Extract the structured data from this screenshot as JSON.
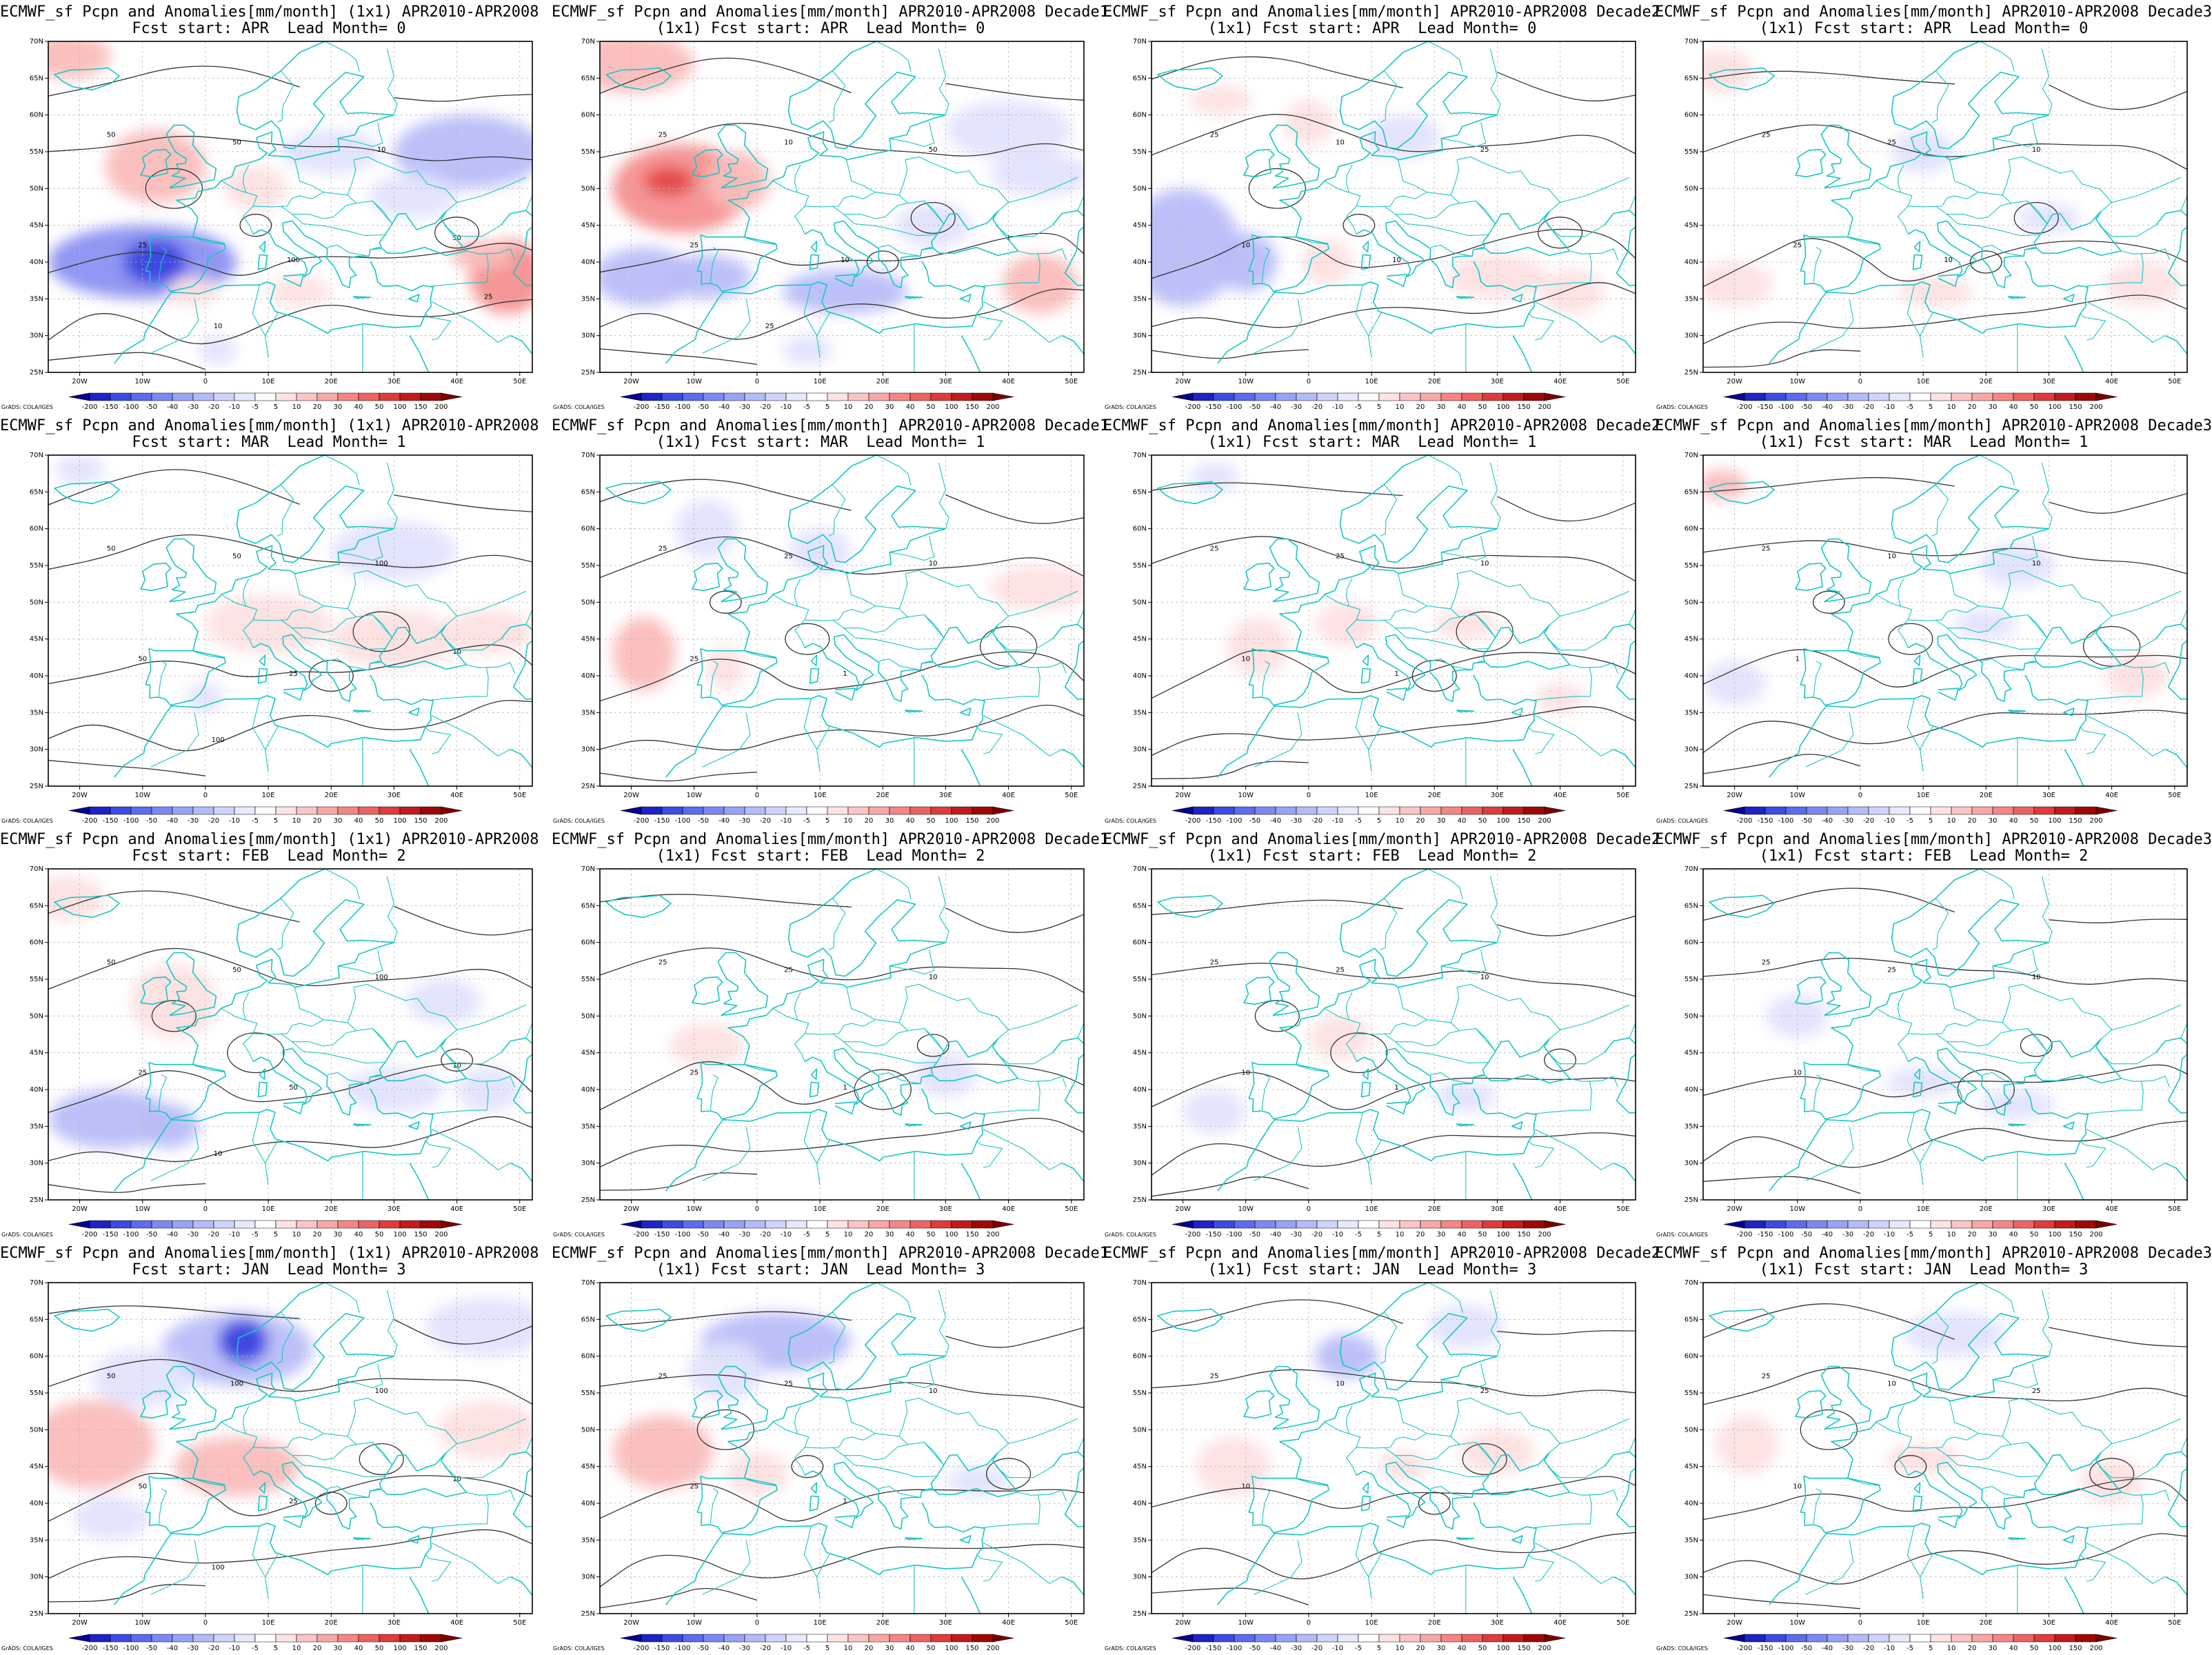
{
  "figure": {
    "colorbar_ticks": [
      "-200",
      "-150",
      "-100",
      "-50",
      "-40",
      "-30",
      "-20",
      "-10",
      "-5",
      "5",
      "10",
      "20",
      "30",
      "40",
      "50",
      "100",
      "150",
      "200"
    ],
    "colorbar_colors": [
      "#06038f",
      "#1d23c5",
      "#3c4be6",
      "#5c6bf0",
      "#7b88f5",
      "#97a3f8",
      "#b3bcfa",
      "#cfd4fc",
      "#e7e9fe",
      "#ffffff",
      "#ffe3e3",
      "#fdc4c4",
      "#fba6a6",
      "#f78585",
      "#f06262",
      "#e03a3a",
      "#c41a1a",
      "#a00808",
      "#7a0000"
    ],
    "credit": "GrADS: COLA/IGES",
    "lon_labels": [
      "20W",
      "10W",
      "0",
      "10E",
      "20E",
      "30E",
      "40E",
      "50E"
    ],
    "lat_labels": [
      "70N",
      "65N",
      "60N",
      "55N",
      "50N",
      "45N",
      "40N",
      "35N",
      "30N",
      "25N"
    ],
    "contour_levels_mm_month": [
      "1",
      "10",
      "25",
      "50",
      "100"
    ],
    "positive_anomaly_color": "#f08a8a",
    "negative_anomaly_color": "#7d83ee",
    "coast_color": "#18c6c6"
  },
  "rows": [
    {
      "forecast_start": "APR",
      "lead_month": "0",
      "panels": [
        {
          "title1": "ECMWF_sf Pcpn and Anomalies[mm/month] (1x1) APR2010-APR2008",
          "title2": "Fcst start: APR  Lead Month= 0",
          "contour_labels": [
            "50",
            "50",
            "10",
            "25",
            "100",
            "50",
            "10",
            "25"
          ]
        },
        {
          "title1": "ECMWF_sf Pcpn and Anomalies[mm/month] APR2010-APR2008 Decade1",
          "title2": "(1x1) Fcst start: APR  Lead Month= 0",
          "contour_labels": [
            "25",
            "10",
            "50",
            "25",
            "10",
            "1",
            "25"
          ]
        },
        {
          "title1": "ECMWF_sf Pcpn and Anomalies[mm/month] APR2010-APR2008 Decade2",
          "title2": "(1x1) Fcst start: APR  Lead Month= 0",
          "contour_labels": [
            "25",
            "10",
            "25",
            "10",
            "10"
          ]
        },
        {
          "title1": "ECMWF_sf Pcpn and Anomalies[mm/month] APR2010-APR2008 Decade3",
          "title2": "(1x1) Fcst start: APR  Lead Month= 0",
          "contour_labels": [
            "25",
            "25",
            "10",
            "25",
            "10"
          ]
        }
      ]
    },
    {
      "forecast_start": "MAR",
      "lead_month": "1",
      "panels": [
        {
          "title1": "ECMWF_sf Pcpn and Anomalies[mm/month] (1x1) APR2010-APR2008",
          "title2": "Fcst start: MAR  Lead Month= 1",
          "contour_labels": [
            "50",
            "50",
            "100",
            "50",
            "25",
            "10",
            "100"
          ]
        },
        {
          "title1": "ECMWF_sf Pcpn and Anomalies[mm/month] APR2010-APR2008 Decade1",
          "title2": "(1x1) Fcst start: MAR  Lead Month= 1",
          "contour_labels": [
            "25",
            "25",
            "10",
            "25",
            "1"
          ]
        },
        {
          "title1": "ECMWF_sf Pcpn and Anomalies[mm/month] APR2010-APR2008 Decade2",
          "title2": "(1x1) Fcst start: MAR  Lead Month= 1",
          "contour_labels": [
            "25",
            "25",
            "10",
            "10",
            "1"
          ]
        },
        {
          "title1": "ECMWF_sf Pcpn and Anomalies[mm/month] APR2010-APR2008 Decade3",
          "title2": "(1x1) Fcst start: MAR  Lead Month= 1",
          "contour_labels": [
            "25",
            "10",
            "10",
            "1"
          ]
        }
      ]
    },
    {
      "forecast_start": "FEB",
      "lead_month": "2",
      "panels": [
        {
          "title1": "ECMWF_sf Pcpn and Anomalies[mm/month] (1x1) APR2010-APR2008",
          "title2": "Fcst start: FEB  Lead Month= 2",
          "contour_labels": [
            "50",
            "50",
            "100",
            "25",
            "50",
            "10",
            "10"
          ]
        },
        {
          "title1": "ECMWF_sf Pcpn and Anomalies[mm/month] APR2010-APR2008 Decade1",
          "title2": "(1x1) Fcst start: FEB  Lead Month= 2",
          "contour_labels": [
            "25",
            "25",
            "10",
            "25",
            "1"
          ]
        },
        {
          "title1": "ECMWF_sf Pcpn and Anomalies[mm/month] APR2010-APR2008 Decade2",
          "title2": "(1x1) Fcst start: FEB  Lead Month= 2",
          "contour_labels": [
            "25",
            "25",
            "10",
            "10",
            "1"
          ]
        },
        {
          "title1": "ECMWF_sf Pcpn and Anomalies[mm/month] APR2010-APR2008 Decade3",
          "title2": "(1x1) Fcst start: FEB  Lead Month= 2",
          "contour_labels": [
            "25",
            "25",
            "10",
            "10"
          ]
        }
      ]
    },
    {
      "forecast_start": "JAN",
      "lead_month": "3",
      "panels": [
        {
          "title1": "ECMWF_sf Pcpn and Anomalies[mm/month] (1x1) APR2010-APR2008",
          "title2": "Fcst start: JAN  Lead Month= 3",
          "contour_labels": [
            "50",
            "100",
            "100",
            "50",
            "25",
            "10",
            "100"
          ]
        },
        {
          "title1": "ECMWF_sf Pcpn and Anomalies[mm/month] APR2010-APR2008 Decade1",
          "title2": "(1x1) Fcst start: JAN  Lead Month= 3",
          "contour_labels": [
            "25",
            "25",
            "10",
            "25",
            "1"
          ]
        },
        {
          "title1": "ECMWF_sf Pcpn and Anomalies[mm/month] APR2010-APR2008 Decade2",
          "title2": "(1x1) Fcst start: JAN  Lead Month= 3",
          "contour_labels": [
            "25",
            "10",
            "25",
            "10"
          ]
        },
        {
          "title1": "ECMWF_sf Pcpn and Anomalies[mm/month] APR2010-APR2008 Decade3",
          "title2": "(1x1) Fcst start: JAN  Lead Month= 3",
          "contour_labels": [
            "25",
            "10",
            "25",
            "10"
          ]
        }
      ]
    }
  ]
}
